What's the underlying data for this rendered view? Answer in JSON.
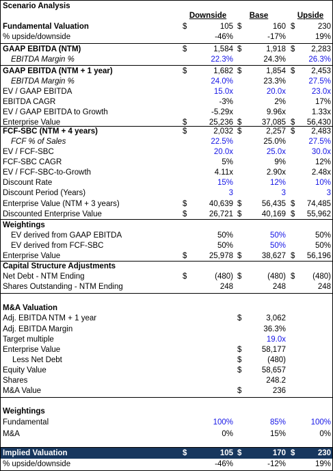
{
  "title": "Scenario Analysis",
  "headers": {
    "downside": "Downside",
    "base": "Base",
    "upside": "Upside"
  },
  "rows": {
    "fund_val": {
      "label": "Fundamental Valuation",
      "d1": "$",
      "v1": "105",
      "d2": "$",
      "v2": "160",
      "d3": "$",
      "v3": "230"
    },
    "fund_pct": {
      "label": "% upside/downside",
      "v1": "-46%",
      "v2": "-17%",
      "v3": "19%"
    },
    "ebitda_ntm": {
      "label": "GAAP EBITDA (NTM)",
      "d1": "$",
      "v1": "1,584",
      "d2": "$",
      "v2": "1,918",
      "d3": "$",
      "v3": "2,283"
    },
    "ebitda_margin1": {
      "label": "EBITDA Margin %",
      "v1": "22.3%",
      "v2": "24.3%",
      "v3": "26.3%"
    },
    "ebitda_ntm1": {
      "label": "GAAP EBITDA (NTM + 1 year)",
      "d1": "$",
      "v1": "1,682",
      "d2": "$",
      "v2": "1,854",
      "d3": "$",
      "v3": "2,453"
    },
    "ebitda_margin2": {
      "label": "EBITDA Margin %",
      "v1": "24.0%",
      "v2": "23.3%",
      "v3": "27.5%"
    },
    "ev_ebitda": {
      "label": "EV / GAAP EBITDA",
      "v1": "15.0x",
      "v2": "20.0x",
      "v3": "23.0x"
    },
    "ebitda_cagr": {
      "label": "EBITDA CAGR",
      "v1": "-3%",
      "v2": "2%",
      "v3": "17%"
    },
    "ev_ebitda_g": {
      "label": "EV / GAAP EBITDA to Growth",
      "v1": "-5.29x",
      "v2": "9.96x",
      "v3": "1.33x"
    },
    "ev1": {
      "label": "Enterprise Value",
      "d1": "$",
      "v1": "25,236",
      "d2": "$",
      "v2": "37,085",
      "d3": "$",
      "v3": "56,430"
    },
    "fcf_sbc": {
      "label": "FCF-SBC (NTM + 4 years)",
      "d1": "$",
      "v1": "2,032",
      "d2": "$",
      "v2": "2,257",
      "d3": "$",
      "v3": "2,483"
    },
    "fcf_sales": {
      "label": "FCF % of Sales",
      "v1": "22.5%",
      "v2": "25.0%",
      "v3": "27.5%"
    },
    "ev_fcf": {
      "label": "EV / FCF-SBC",
      "v1": "20.0x",
      "v2": "25.0x",
      "v3": "30.0x"
    },
    "fcf_cagr": {
      "label": "FCF-SBC CAGR",
      "v1": "5%",
      "v2": "9%",
      "v3": "12%"
    },
    "ev_fcf_g": {
      "label": "EV / FCF-SBC-to-Growth",
      "v1": "4.11x",
      "v2": "2.90x",
      "v3": "2.48x"
    },
    "disc_rate": {
      "label": "Discount Rate",
      "v1": "15%",
      "v2": "12%",
      "v3": "10%"
    },
    "disc_period": {
      "label": "Discount Period (Years)",
      "v1": "3",
      "v2": "3",
      "v3": "3"
    },
    "ev_ntm3": {
      "label": "Enterprise Value (NTM + 3 years)",
      "d1": "$",
      "v1": "40,639",
      "d2": "$",
      "v2": "56,435",
      "d3": "$",
      "v3": "74,485"
    },
    "ev_disc": {
      "label": "Discounted Enterprise Value",
      "d1": "$",
      "v1": "26,721",
      "d2": "$",
      "v2": "40,169",
      "d3": "$",
      "v3": "55,962"
    },
    "weightings1": {
      "label": "Weightings"
    },
    "ev_from_ebitda": {
      "label": "EV derived from GAAP EBITDA",
      "v1": "50%",
      "v2": "50%",
      "v3": "50%"
    },
    "ev_from_fcf": {
      "label": "EV derived from FCF-SBC",
      "v1": "50%",
      "v2": "50%",
      "v3": "50%"
    },
    "ev2": {
      "label": "Enterprise Value",
      "d1": "$",
      "v1": "25,978",
      "d2": "$",
      "v2": "38,627",
      "d3": "$",
      "v3": "56,196"
    },
    "cap_struct": {
      "label": "Capital Structure Adjustments"
    },
    "net_debt": {
      "label": "Net Debt - NTM Ending",
      "d1": "$",
      "v1": "(480)",
      "d2": "$",
      "v2": "(480)",
      "d3": "$",
      "v3": "(480)"
    },
    "shares_out": {
      "label": "Shares Outstanding - NTM Ending",
      "v1": "248",
      "v2": "248",
      "v3": "248"
    },
    "ma_val": {
      "label": "M&A Valuation"
    },
    "adj_ebitda": {
      "label": "Adj. EBITDA NTM + 1 year",
      "d2": "$",
      "v2": "3,062"
    },
    "adj_margin": {
      "label": "Adj. EBITDA Margin",
      "v2": "36.3%"
    },
    "target_mult": {
      "label": "Target multiple",
      "v2": "19.0x"
    },
    "ma_ev": {
      "label": "Enterprise Value",
      "d2": "$",
      "v2": "58,177"
    },
    "less_debt": {
      "label": "Less Net Debt",
      "d2": "$",
      "v2": "(480)"
    },
    "equity_val": {
      "label": "Equity Value",
      "d2": "$",
      "v2": "58,657"
    },
    "shares": {
      "label": "Shares",
      "v2": "248.2"
    },
    "ma_value": {
      "label": "M&A Value",
      "d2": "$",
      "v2": "236"
    },
    "weightings2": {
      "label": "Weightings"
    },
    "w_fund": {
      "label": "Fundamental",
      "v1": "100%",
      "v2": "85%",
      "v3": "100%"
    },
    "w_ma": {
      "label": "M&A",
      "v1": "0%",
      "v2": "15%",
      "v3": "0%"
    },
    "implied": {
      "label": "Implied Valuation",
      "d1": "$",
      "v1": "105",
      "d2": "$",
      "v2": "170",
      "d3": "$",
      "v3": "230"
    },
    "implied_pct": {
      "label": "% upside/downside",
      "v1": "-46%",
      "v2": "-12%",
      "v3": "19%"
    }
  },
  "colors": {
    "input_blue": "#1414e6",
    "header_band": "#17375e"
  }
}
